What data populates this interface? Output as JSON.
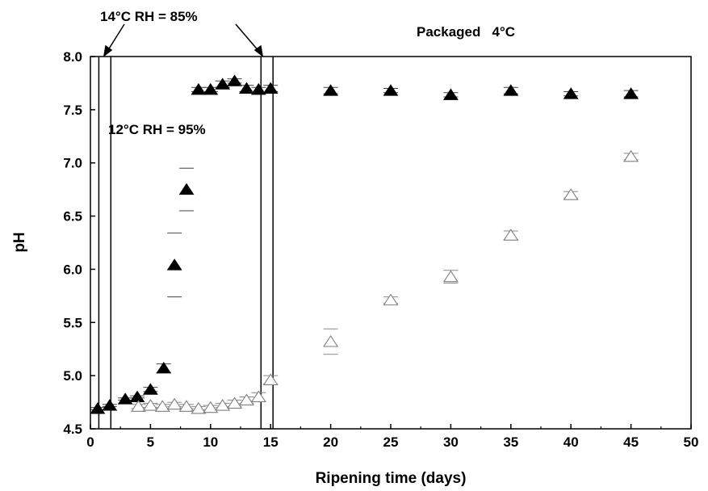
{
  "chart_data": {
    "type": "scatter",
    "title": "",
    "xlabel": "Ripening time (days)",
    "ylabel": "pH",
    "xlim": [
      0,
      50
    ],
    "ylim": [
      4.5,
      8.0
    ],
    "xticks": [
      0,
      5,
      10,
      15,
      20,
      25,
      30,
      35,
      40,
      45,
      50
    ],
    "yticks": [
      4.5,
      5.0,
      5.5,
      6.0,
      6.5,
      7.0,
      7.5,
      8.0
    ],
    "ytick_labels": [
      "4.5",
      "5.0",
      "5.5",
      "6.0",
      "6.5",
      "7.0",
      "7.5",
      "8.0"
    ],
    "grid": false,
    "legend": "none",
    "series": [
      {
        "marker": "filled-triangle",
        "color": "#000000",
        "x": [
          0.6,
          1.6,
          2.9,
          3.9,
          5.0,
          6.1,
          7.0,
          8.0,
          9.0,
          10.0,
          11.0,
          12.0,
          13.0,
          14.0,
          15.0,
          20,
          25,
          30,
          35,
          40,
          45
        ],
        "y": [
          4.69,
          4.72,
          4.78,
          4.8,
          4.87,
          5.07,
          6.04,
          6.75,
          7.69,
          7.69,
          7.74,
          7.77,
          7.7,
          7.69,
          7.7,
          7.68,
          7.68,
          7.64,
          7.68,
          7.65,
          7.65
        ],
        "err": [
          0.01,
          0.01,
          0.01,
          0.01,
          0.02,
          0.04,
          0.3,
          0.2,
          0.02,
          0.02,
          0.03,
          0.02,
          0.03,
          0.02,
          0.03,
          0.03,
          0.02,
          0.02,
          0.03,
          0.02,
          0.03
        ]
      },
      {
        "marker": "open-triangle",
        "color": "#7f7f7f",
        "x": [
          4.0,
          5.0,
          6.0,
          7.0,
          8.0,
          9.0,
          10.0,
          11.0,
          12.0,
          13.0,
          14.0,
          15.0,
          20,
          25,
          30,
          35,
          40,
          45
        ],
        "y": [
          4.71,
          4.72,
          4.71,
          4.73,
          4.71,
          4.69,
          4.7,
          4.72,
          4.74,
          4.77,
          4.8,
          4.96,
          5.32,
          5.71,
          5.93,
          6.32,
          6.7,
          7.06
        ],
        "err": [
          0.02,
          0.02,
          0.02,
          0.02,
          0.02,
          0.02,
          0.02,
          0.02,
          0.03,
          0.03,
          0.04,
          0.04,
          0.12,
          0.03,
          0.06,
          0.04,
          0.03,
          0.03
        ]
      }
    ],
    "phase_lines_x": [
      0.7,
      1.7,
      14.2,
      15.2
    ],
    "annotations": [
      {
        "text": "14°C RH = 85%"
      },
      {
        "text": "12°C RH = 95%"
      },
      {
        "text": "Packaged   4°C"
      }
    ]
  }
}
